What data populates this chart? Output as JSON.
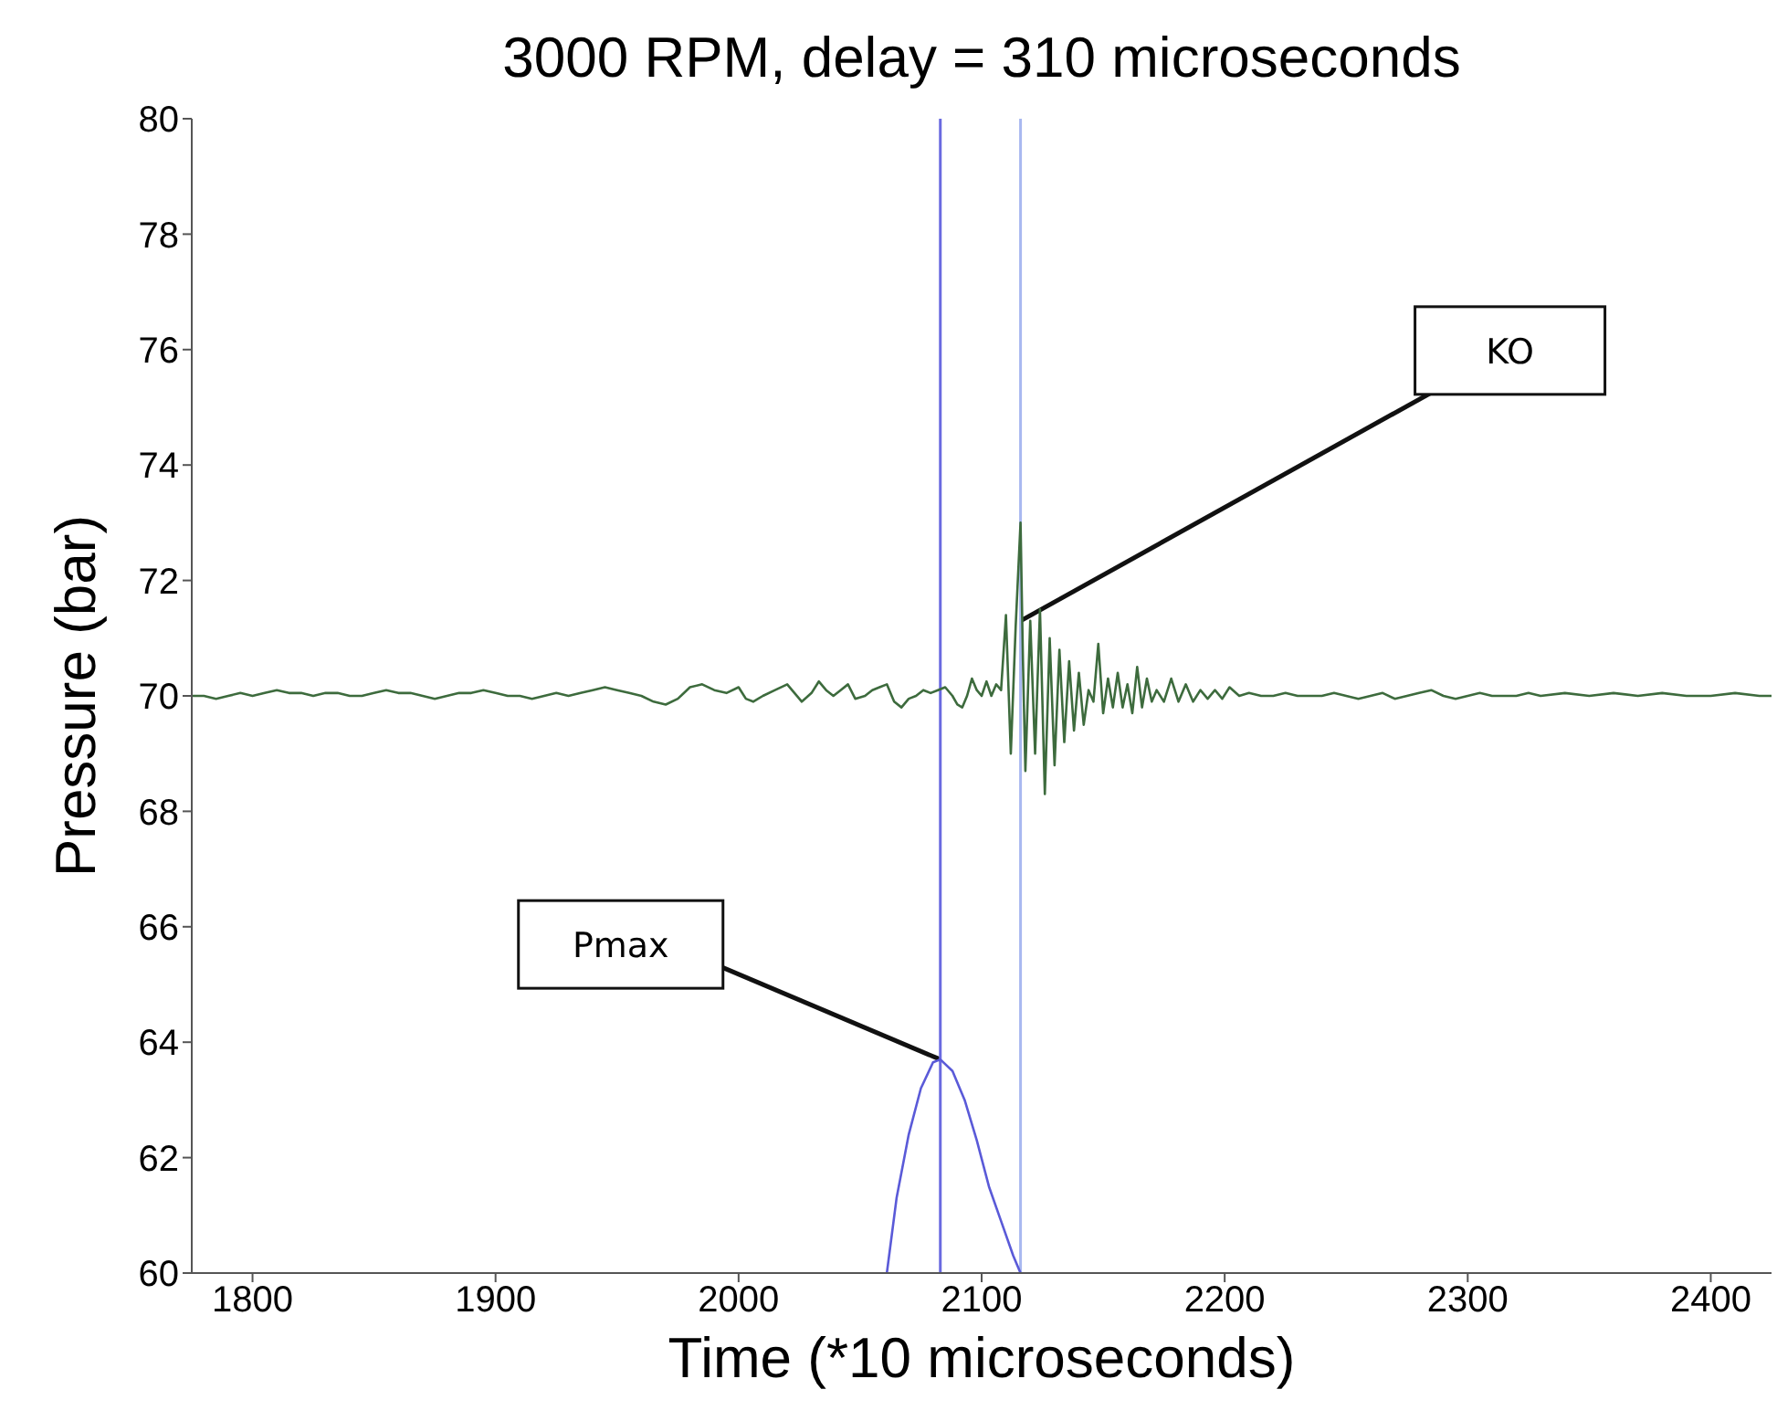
{
  "chart_data": {
    "type": "line",
    "title": "3000 RPM, delay = 310 microseconds",
    "xlabel": "Time (*10 microseconds)",
    "ylabel": "Pressure (bar)",
    "xlim": [
      1775,
      2425
    ],
    "xticks": [
      1800,
      1900,
      2000,
      2100,
      2200,
      2300,
      2400
    ],
    "ylim": [
      60,
      80
    ],
    "yticks": [
      60,
      62,
      64,
      66,
      68,
      70,
      72,
      74,
      76,
      78,
      80
    ],
    "grid": false,
    "legend": false,
    "marker": "none",
    "line_style": "solid",
    "series": [
      {
        "color": "#3d6b3d",
        "x": [
          1775,
          1780,
          1785,
          1790,
          1795,
          1800,
          1805,
          1810,
          1815,
          1820,
          1825,
          1830,
          1835,
          1840,
          1845,
          1850,
          1855,
          1860,
          1865,
          1870,
          1875,
          1880,
          1885,
          1890,
          1895,
          1900,
          1905,
          1910,
          1915,
          1920,
          1925,
          1930,
          1935,
          1940,
          1945,
          1950,
          1955,
          1960,
          1965,
          1970,
          1975,
          1980,
          1985,
          1990,
          1995,
          2000,
          2003,
          2006,
          2010,
          2015,
          2020,
          2023,
          2026,
          2030,
          2033,
          2036,
          2039,
          2042,
          2045,
          2048,
          2052,
          2055,
          2058,
          2061,
          2064,
          2067,
          2070,
          2073,
          2076,
          2079,
          2082,
          2085,
          2088,
          2090,
          2092,
          2094,
          2096,
          2098,
          2100,
          2102,
          2104,
          2106,
          2108,
          2110,
          2112,
          2114,
          2116,
          2117,
          2118,
          2120,
          2122,
          2124,
          2126,
          2128,
          2130,
          2132,
          2134,
          2136,
          2138,
          2140,
          2142,
          2144,
          2146,
          2148,
          2150,
          2152,
          2154,
          2156,
          2158,
          2160,
          2162,
          2164,
          2166,
          2168,
          2170,
          2172,
          2175,
          2178,
          2181,
          2184,
          2187,
          2190,
          2193,
          2196,
          2199,
          2202,
          2206,
          2210,
          2215,
          2220,
          2225,
          2230,
          2240,
          2245,
          2250,
          2255,
          2260,
          2265,
          2270,
          2275,
          2280,
          2285,
          2290,
          2295,
          2300,
          2305,
          2310,
          2320,
          2325,
          2330,
          2340,
          2350,
          2360,
          2370,
          2380,
          2390,
          2400,
          2410,
          2420,
          2425
        ],
        "values": [
          70.0,
          70.0,
          69.95,
          70.0,
          70.05,
          70.0,
          70.05,
          70.1,
          70.05,
          70.05,
          70.0,
          70.05,
          70.05,
          70.0,
          70.0,
          70.05,
          70.1,
          70.05,
          70.05,
          70.0,
          69.95,
          70.0,
          70.05,
          70.05,
          70.1,
          70.05,
          70.0,
          70.0,
          69.95,
          70.0,
          70.05,
          70.0,
          70.05,
          70.1,
          70.15,
          70.1,
          70.05,
          70.0,
          69.9,
          69.85,
          69.95,
          70.15,
          70.2,
          70.1,
          70.05,
          70.15,
          69.95,
          69.9,
          70.0,
          70.1,
          70.2,
          70.05,
          69.9,
          70.05,
          70.25,
          70.1,
          70.0,
          70.1,
          70.2,
          69.95,
          70.0,
          70.1,
          70.15,
          70.2,
          69.9,
          69.8,
          69.95,
          70.0,
          70.1,
          70.05,
          70.1,
          70.15,
          70.0,
          69.85,
          69.8,
          70.0,
          70.3,
          70.1,
          70.0,
          70.25,
          70.0,
          70.2,
          70.1,
          71.4,
          69.0,
          71.2,
          73.0,
          70.6,
          68.7,
          71.3,
          69.0,
          71.5,
          68.3,
          71.0,
          68.8,
          70.8,
          69.2,
          70.6,
          69.4,
          70.4,
          69.5,
          70.1,
          69.9,
          70.9,
          69.7,
          70.3,
          69.8,
          70.4,
          69.8,
          70.2,
          69.7,
          70.5,
          69.8,
          70.3,
          69.9,
          70.1,
          69.9,
          70.3,
          69.9,
          70.2,
          69.9,
          70.1,
          69.95,
          70.1,
          69.95,
          70.15,
          70.0,
          70.05,
          70.0,
          70.0,
          70.05,
          70.0,
          70.0,
          70.05,
          70.0,
          69.95,
          70.0,
          70.05,
          69.95,
          70.0,
          70.05,
          70.1,
          70.0,
          69.95,
          70.0,
          70.05,
          70.0,
          70.0,
          70.05,
          70.0,
          70.05,
          70.0,
          70.05,
          70.0,
          70.05,
          70.0,
          70.0,
          70.05,
          70.0,
          70.0
        ]
      },
      {
        "color": "#5a5ad8",
        "x": [
          2061,
          2065,
          2070,
          2075,
          2080,
          2083,
          2088,
          2093,
          2098,
          2103,
          2108,
          2113,
          2116
        ],
        "values": [
          60.0,
          61.3,
          62.4,
          63.2,
          63.65,
          63.7,
          63.5,
          63.0,
          62.3,
          61.5,
          60.9,
          60.3,
          60.0
        ]
      }
    ],
    "ref_lines": [
      {
        "axis": "x",
        "value": 2083,
        "color": "#6a6ae0"
      },
      {
        "axis": "x",
        "value": 2116,
        "color": "#a8b8f0"
      }
    ],
    "annotations": [
      {
        "text": "KO",
        "x": 2116,
        "y": 71.3
      },
      {
        "text": "Pmax",
        "x": 2083,
        "y": 63.7
      }
    ]
  }
}
